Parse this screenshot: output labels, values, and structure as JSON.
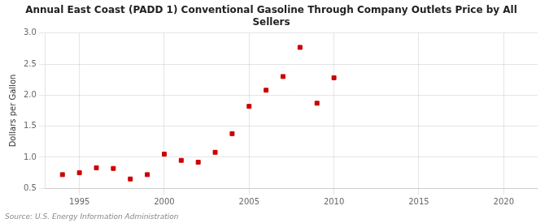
{
  "chart_data": {
    "type": "scatter",
    "title": "Annual East Coast (PADD 1) Conventional Gasoline Through Company Outlets Price by All\nSellers",
    "ylabel": "Dollars per Gallon",
    "source": "Source: U.S. Energy Information Administration",
    "x": [
      1994,
      1995,
      1996,
      1997,
      1998,
      1999,
      2000,
      2001,
      2002,
      2003,
      2004,
      2005,
      2006,
      2007,
      2008,
      2009,
      2010
    ],
    "values": [
      0.72,
      0.75,
      0.83,
      0.82,
      0.65,
      0.72,
      1.05,
      0.95,
      0.92,
      1.08,
      1.38,
      1.82,
      2.08,
      2.3,
      2.77,
      1.87,
      2.28
    ],
    "color": "#cc0000",
    "marker": "square",
    "xlim": [
      1993,
      2022
    ],
    "xticks": [
      1995,
      2000,
      2005,
      2010,
      2015,
      2020
    ],
    "ylim": [
      0.5,
      3.0
    ],
    "yticks": [
      0.5,
      {
        "value": 1.0,
        "label": "1.0"
      },
      1.5,
      {
        "value": 2.0,
        "label": "2.0"
      },
      2.5,
      {
        "value": 3.0,
        "label": "3.0"
      }
    ],
    "grid": true
  }
}
